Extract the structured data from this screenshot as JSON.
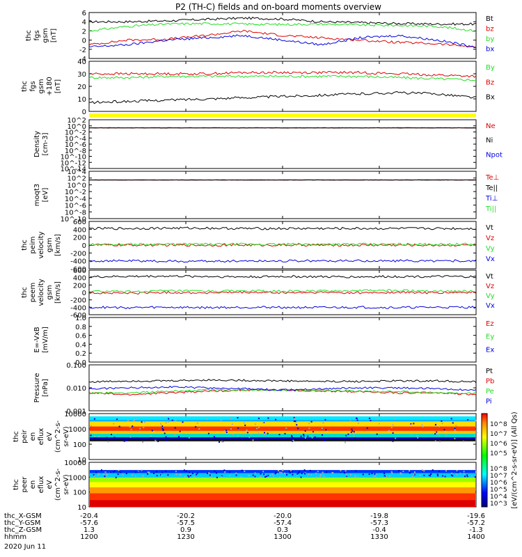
{
  "title": "P2 (TH-C) fields and on-board moments overview",
  "colors": {
    "black": "#000000",
    "red": "#dd0000",
    "green": "#22dd22",
    "blue": "#0000dd",
    "yellow": "#ffff00"
  },
  "chart_data": [
    {
      "type": "line",
      "ylabel": [
        "thc",
        "fgs",
        "gsm",
        "[nT]"
      ],
      "ylim": [
        -4,
        6
      ],
      "ticks": [
        "6",
        "4",
        "2",
        "0",
        "-2",
        "-4"
      ],
      "series": [
        {
          "name": "Bt",
          "color": "black",
          "values": [
            4,
            4,
            4.2,
            4.5,
            4.8,
            4.6,
            4,
            3.8,
            3.6,
            3.5,
            3.5
          ]
        },
        {
          "name": "bz",
          "color": "red",
          "values": [
            -1,
            0,
            0.2,
            1,
            2,
            1,
            0.5,
            0,
            -0.5,
            -0.8,
            -1.5
          ]
        },
        {
          "name": "by",
          "color": "green",
          "values": [
            2,
            3,
            3.5,
            3.6,
            3.5,
            3.4,
            3.5,
            3.3,
            3.2,
            3,
            2
          ]
        },
        {
          "name": "bx",
          "color": "blue",
          "values": [
            -1.5,
            -1,
            0,
            0.5,
            1,
            0,
            -1,
            0.5,
            1,
            0,
            -1.5
          ]
        }
      ]
    },
    {
      "type": "line",
      "ylabel": [
        "thc",
        "fgs",
        "gsm",
        "+180",
        "[nT]"
      ],
      "ylim": [
        0,
        40
      ],
      "ticks": [
        "40",
        "30",
        "20",
        "10",
        "0"
      ],
      "series": [
        {
          "name": "By",
          "color": "green",
          "values": [
            27,
            27,
            28,
            28,
            28,
            28,
            28,
            28,
            27,
            26,
            25
          ]
        },
        {
          "name": "Bz",
          "color": "red",
          "values": [
            30,
            30,
            30,
            30,
            31,
            31,
            31,
            31,
            30,
            29,
            28
          ]
        },
        {
          "name": "Bx",
          "color": "black",
          "values": [
            7,
            8,
            9,
            10,
            11,
            12,
            13,
            14,
            15,
            14,
            11
          ]
        }
      ]
    },
    {
      "type": "line",
      "ylabel": [
        "Density",
        "[cm-3]"
      ],
      "ylim": [
        1e-13,
        100.0
      ],
      "ticks": [
        "10^2",
        "10^0",
        "10^-2",
        "10^-4",
        "10^-6",
        "10^-8",
        "10^-10",
        "10^-12",
        "10^-14"
      ],
      "series": [
        {
          "name": "Ne",
          "color": "red",
          "values": [
            0.35,
            0.35,
            0.35,
            0.35,
            0.35,
            0.35,
            0.35,
            0.35,
            0.35,
            0.35,
            0.35
          ]
        },
        {
          "name": "Ni",
          "color": "black",
          "values": [
            0.3,
            0.3,
            0.3,
            0.3,
            0.3,
            0.3,
            0.3,
            0.3,
            0.3,
            0.3,
            0.3
          ]
        },
        {
          "name": "Npot",
          "color": "blue",
          "values": [
            null
          ]
        }
      ]
    },
    {
      "type": "line",
      "ylabel": [
        "moqt3",
        "[eV]"
      ],
      "ylim": [
        1e-10,
        10000.0
      ],
      "ticks": [
        "10^4",
        "10^2",
        "10^0",
        "10^-2",
        "10^-4",
        "10^-6",
        "10^-8",
        "10^-10"
      ],
      "series": [
        {
          "name": "Te⊥",
          "color": "red",
          "values": [
            30,
            30,
            30,
            30,
            30,
            30,
            30,
            30,
            30,
            30,
            30
          ]
        },
        {
          "name": "Te||",
          "color": "black",
          "values": [
            25,
            25,
            25,
            25,
            25,
            25,
            25,
            25,
            25,
            25,
            25
          ]
        },
        {
          "name": "Ti⊥",
          "color": "blue",
          "values": [
            null
          ]
        },
        {
          "name": "Ti||",
          "color": "green",
          "values": [
            null
          ]
        }
      ]
    },
    {
      "type": "line",
      "ylabel": [
        "thc",
        "peim",
        "velocity",
        "gsm",
        "[km/s]"
      ],
      "ylim": [
        -600,
        600
      ],
      "ticks": [
        "600",
        "400",
        "200",
        "0",
        "-200",
        "-400",
        "-600"
      ],
      "series": [
        {
          "name": "Vt",
          "color": "black",
          "values": [
            420,
            420,
            430,
            430,
            420,
            420,
            420,
            420,
            420,
            420,
            420
          ]
        },
        {
          "name": "Vz",
          "color": "red",
          "values": [
            0,
            0,
            0,
            0,
            0,
            0,
            0,
            0,
            0,
            0,
            0
          ]
        },
        {
          "name": "Vy",
          "color": "green",
          "values": [
            20,
            20,
            20,
            20,
            20,
            20,
            20,
            20,
            20,
            20,
            20
          ]
        },
        {
          "name": "Vx",
          "color": "blue",
          "values": [
            -400,
            -400,
            -410,
            -410,
            -400,
            -400,
            -400,
            -400,
            -400,
            -400,
            -400
          ]
        }
      ]
    },
    {
      "type": "line",
      "ylabel": [
        "thc",
        "peem",
        "velocity",
        "gsm",
        "[km/s]"
      ],
      "ylim": [
        -600,
        600
      ],
      "ticks": [
        "600",
        "400",
        "200",
        "0",
        "-200",
        "-400",
        "-600"
      ],
      "series": [
        {
          "name": "Vt",
          "color": "black",
          "values": [
            420,
            430,
            440,
            430,
            420,
            430,
            420,
            420,
            430,
            430,
            420
          ]
        },
        {
          "name": "Vz",
          "color": "red",
          "values": [
            -10,
            -20,
            0,
            -10,
            0,
            -10,
            0,
            -10,
            0,
            -10,
            0
          ]
        },
        {
          "name": "Vy",
          "color": "green",
          "values": [
            30,
            20,
            40,
            30,
            40,
            30,
            40,
            50,
            50,
            40,
            30
          ]
        },
        {
          "name": "Vx",
          "color": "blue",
          "values": [
            -400,
            -410,
            -400,
            -410,
            -400,
            -400,
            -410,
            -400,
            -410,
            -400,
            -400
          ]
        }
      ]
    },
    {
      "type": "line",
      "ylabel": [
        "E=-VxB",
        "[mV/m]"
      ],
      "ylim": [
        0,
        1
      ],
      "ticks": [
        "1.0",
        "0.8",
        "0.6",
        "0.4",
        "0.2",
        "0.0"
      ],
      "series": [
        {
          "name": "Ez",
          "color": "red",
          "values": [
            null
          ]
        },
        {
          "name": "Ey",
          "color": "green",
          "values": [
            null
          ]
        },
        {
          "name": "Ex",
          "color": "blue",
          "values": [
            null
          ]
        }
      ]
    },
    {
      "type": "line",
      "ylabel": [
        "Pressure",
        "[nPa]"
      ],
      "ylim": [
        0.001,
        0.1
      ],
      "ticks": [
        "0.100",
        "0.010",
        "0.001"
      ],
      "series": [
        {
          "name": "Pt",
          "color": "black",
          "values": [
            0.018,
            0.02,
            0.02,
            0.022,
            0.021,
            0.02,
            0.019,
            0.019,
            0.02,
            0.02,
            0.018
          ]
        },
        {
          "name": "Pb",
          "color": "red",
          "values": [
            0.006,
            0.005,
            0.006,
            0.007,
            0.008,
            0.008,
            0.007,
            0.007,
            0.006,
            0.006,
            0.005
          ]
        },
        {
          "name": "Pe",
          "color": "green",
          "values": [
            0.006,
            0.006,
            0.007,
            0.008,
            0.008,
            0.008,
            0.008,
            0.007,
            0.007,
            0.006,
            0.006
          ]
        },
        {
          "name": "Pi",
          "color": "blue",
          "values": [
            0.009,
            0.01,
            0.011,
            0.01,
            0.009,
            0.008,
            0.009,
            0.01,
            0.01,
            0.009,
            0.008
          ]
        }
      ]
    },
    {
      "type": "heatmap",
      "ylabel": [
        "thc",
        "peir",
        "en",
        "eflux",
        "eV",
        "(cm^2-s-",
        "sr-eV)"
      ],
      "ylim": [
        5,
        15000
      ],
      "ticks": [
        "10000",
        "1000",
        "100",
        "10"
      ]
    },
    {
      "type": "heatmap",
      "ylabel": [
        "thc",
        "peer",
        "en",
        "eflux",
        "eV",
        "(cm^2-s-",
        "sr-eV)"
      ],
      "ylim": [
        5,
        15000
      ],
      "ticks": [
        "10000",
        "1000",
        "100",
        "10"
      ]
    }
  ],
  "colorbar": {
    "label": "[eV/(cm^2-s-sr-eV)] (All Qs)",
    "ticks_top": [
      "10^8",
      "10^7",
      "10^6",
      "10^5"
    ],
    "ticks_bottom": [
      "10^8",
      "10^7",
      "10^6",
      "10^5",
      "10^4",
      "10^3"
    ]
  },
  "footer": {
    "rows": [
      {
        "label": "thc_X-GSM",
        "values": [
          "-20.4",
          "-20.2",
          "-20.0",
          "-19.8",
          "-19.6"
        ]
      },
      {
        "label": "thc_Y-GSM",
        "values": [
          "-57.6",
          "-57.5",
          "-57.4",
          "-57.3",
          "-57.2"
        ]
      },
      {
        "label": "thc_Z-GSM",
        "values": [
          "1.3",
          "0.9",
          "0.3",
          "-0.4",
          "-1.3"
        ]
      },
      {
        "label": "hhmm",
        "values": [
          "1200",
          "1230",
          "1300",
          "1330",
          "1400"
        ]
      }
    ],
    "date": "2020 Jun 11"
  }
}
